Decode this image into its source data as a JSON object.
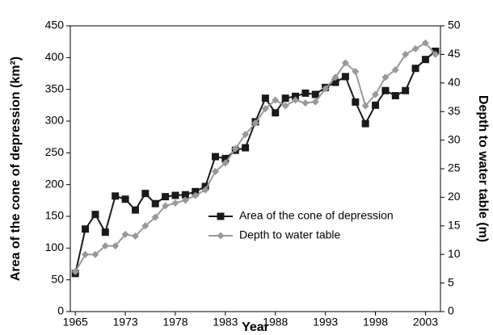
{
  "chart_data": {
    "type": "line",
    "xlabel": "Year",
    "ylabel": "Area of the cone of depression (km²)",
    "y2label": "Depth to water table (m)",
    "categories": [
      "1965",
      null,
      null,
      null,
      null,
      "1973",
      null,
      null,
      null,
      null,
      "1978",
      null,
      null,
      null,
      null,
      "1983",
      null,
      null,
      null,
      null,
      "1988",
      null,
      null,
      null,
      null,
      "1993",
      null,
      null,
      null,
      null,
      "1998",
      null,
      null,
      null,
      null,
      "2003",
      null
    ],
    "series": [
      {
        "name": "Area of the cone of depression",
        "color": "#1a1a1a",
        "marker": "square",
        "values": [
          60,
          130,
          153,
          125,
          182,
          177,
          160,
          186,
          170,
          181,
          183,
          184,
          189,
          197,
          244,
          241,
          254,
          258,
          299,
          336,
          313,
          336,
          339,
          344,
          342,
          353,
          361,
          370,
          330,
          296,
          325,
          348,
          340,
          348,
          383,
          397,
          410
        ]
      },
      {
        "name": "Depth to water table",
        "color": "#999999",
        "marker": "diamond",
        "axis": "y2",
        "values": [
          7,
          10,
          10,
          11.5,
          11.5,
          13.5,
          13.2,
          15,
          16.5,
          18.5,
          19,
          19.5,
          20.3,
          21.3,
          24.5,
          26,
          28.5,
          31,
          33,
          35.5,
          37,
          36,
          37,
          36.5,
          36.7,
          39,
          41,
          43.5,
          42,
          36,
          38,
          41,
          42.3,
          45,
          46,
          47,
          45
        ]
      }
    ],
    "ylim": [
      0,
      450
    ],
    "yticks": [
      0,
      50,
      100,
      150,
      200,
      250,
      300,
      350,
      400,
      450
    ],
    "y2lim": [
      0,
      50
    ],
    "y2ticks": [
      0,
      5,
      10,
      15,
      20,
      25,
      30,
      35,
      40,
      45,
      50
    ],
    "legend": "right"
  }
}
